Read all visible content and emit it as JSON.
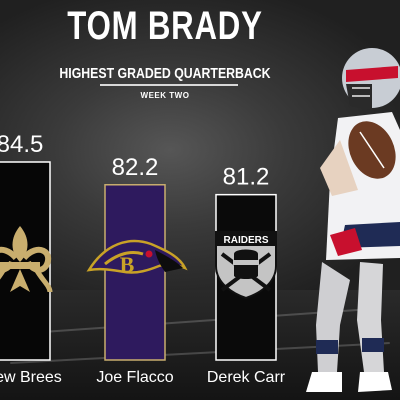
{
  "header": {
    "title": "TOM BRADY",
    "subtitle": "HIGHEST GRADED QUARTERBACK",
    "week": "WEEK TWO"
  },
  "colors": {
    "saints_bar": "#060606",
    "ravens_bar": "#2e1a5e",
    "raiders_bar": "#0a0a0a",
    "saints_gold": "#c9ae6e",
    "accent_text": "#ffffff"
  },
  "chart_data": {
    "type": "bar",
    "categories": [
      "Drew Brees",
      "Joe Flacco",
      "Derek Carr"
    ],
    "values": [
      84.5,
      82.2,
      81.2
    ],
    "value_labels": [
      "84.5",
      "82.2",
      "81.2"
    ],
    "logos": [
      "fleur-de-lis-icon",
      "raven-head-icon",
      "raiders-shield-icon"
    ],
    "logo_text": [
      "",
      "",
      "RAIDERS"
    ],
    "title": "TOM BRADY",
    "subtitle": "HIGHEST GRADED QUARTERBACK",
    "xlabel": "",
    "ylabel": ""
  }
}
